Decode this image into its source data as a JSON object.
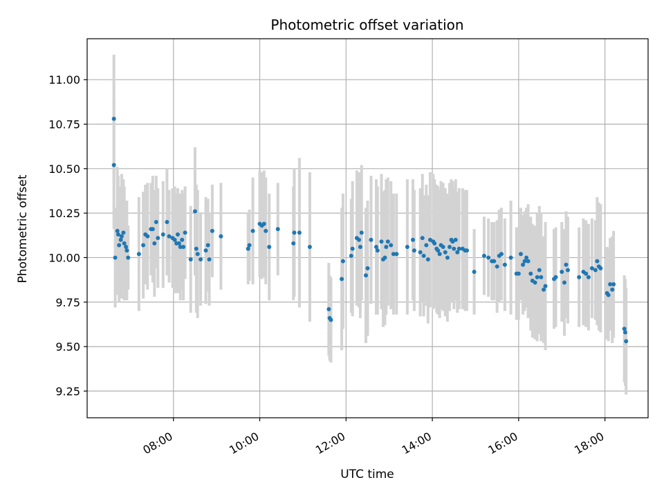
{
  "chart_data": {
    "type": "scatter",
    "title": "Photometric offset variation",
    "xlabel": "UTC time",
    "ylabel": "Photometric offset",
    "xlim_hours": [
      6.0,
      19.0
    ],
    "ylim": [
      9.1,
      11.23
    ],
    "x_ticks": [
      {
        "hour": 8,
        "label": "08:00"
      },
      {
        "hour": 10,
        "label": "10:00"
      },
      {
        "hour": 12,
        "label": "12:00"
      },
      {
        "hour": 14,
        "label": "14:00"
      },
      {
        "hour": 16,
        "label": "16:00"
      },
      {
        "hour": 18,
        "label": "18:00"
      }
    ],
    "y_ticks": [
      {
        "value": 9.25,
        "label": "9.25"
      },
      {
        "value": 9.5,
        "label": "9.50"
      },
      {
        "value": 9.75,
        "label": "9.75"
      },
      {
        "value": 10.0,
        "label": "10.00"
      },
      {
        "value": 10.25,
        "label": "10.25"
      },
      {
        "value": 10.5,
        "label": "10.50"
      },
      {
        "value": 10.75,
        "label": "10.75"
      },
      {
        "value": 11.0,
        "label": "11.00"
      }
    ],
    "grid": true,
    "point_color": "#1f77b4",
    "errorbar_color": "#d3d3d3",
    "series": [
      {
        "points": [
          [
            6.62,
            10.78,
            0.36
          ],
          [
            6.62,
            10.52,
            0.36
          ],
          [
            6.65,
            10.0,
            0.28
          ],
          [
            6.7,
            10.15,
            0.36
          ],
          [
            6.72,
            10.13,
            0.33
          ],
          [
            6.74,
            10.07,
            0.32
          ],
          [
            6.78,
            10.1,
            0.3
          ],
          [
            6.8,
            10.12,
            0.35
          ],
          [
            6.84,
            10.14,
            0.3
          ],
          [
            6.86,
            10.08,
            0.32
          ],
          [
            6.9,
            10.06,
            0.26
          ],
          [
            6.92,
            10.04,
            0.28
          ],
          [
            6.95,
            10.0,
            0.18
          ],
          [
            7.2,
            10.02,
            0.32
          ],
          [
            7.3,
            10.07,
            0.3
          ],
          [
            7.35,
            10.13,
            0.28
          ],
          [
            7.4,
            10.12,
            0.3
          ],
          [
            7.48,
            10.16,
            0.26
          ],
          [
            7.52,
            10.16,
            0.3
          ],
          [
            7.56,
            10.08,
            0.3
          ],
          [
            7.6,
            10.2,
            0.26
          ],
          [
            7.64,
            10.11,
            0.28
          ],
          [
            7.76,
            10.13,
            0.3
          ],
          [
            7.85,
            10.2,
            0.3
          ],
          [
            7.9,
            10.12,
            0.26
          ],
          [
            7.98,
            10.11,
            0.28
          ],
          [
            8.03,
            10.1,
            0.3
          ],
          [
            8.07,
            10.08,
            0.28
          ],
          [
            8.1,
            10.13,
            0.26
          ],
          [
            8.13,
            10.08,
            0.28
          ],
          [
            8.16,
            10.06,
            0.3
          ],
          [
            8.2,
            10.1,
            0.28
          ],
          [
            8.23,
            10.06,
            0.3
          ],
          [
            8.27,
            10.14,
            0.26
          ],
          [
            8.4,
            9.99,
            0.3
          ],
          [
            8.5,
            10.26,
            0.36
          ],
          [
            8.53,
            10.05,
            0.36
          ],
          [
            8.56,
            10.02,
            0.36
          ],
          [
            8.63,
            9.99,
            0.26
          ],
          [
            8.75,
            10.04,
            0.3
          ],
          [
            8.8,
            10.07,
            0.26
          ],
          [
            8.83,
            9.99,
            0.26
          ],
          [
            8.9,
            10.15,
            0.26
          ],
          [
            9.1,
            10.12,
            0.3
          ],
          [
            9.73,
            10.05,
            0.2
          ],
          [
            9.76,
            10.07,
            0.2
          ],
          [
            9.84,
            10.15,
            0.3
          ],
          [
            10.0,
            10.19,
            0.3
          ],
          [
            10.05,
            10.18,
            0.3
          ],
          [
            10.1,
            10.19,
            0.3
          ],
          [
            10.14,
            10.15,
            0.3
          ],
          [
            10.22,
            10.06,
            0.3
          ],
          [
            10.42,
            10.16,
            0.26
          ],
          [
            10.78,
            10.08,
            0.32
          ],
          [
            10.8,
            10.14,
            0.36
          ],
          [
            10.92,
            10.14,
            0.42
          ],
          [
            11.16,
            10.06,
            0.42
          ],
          [
            11.6,
            9.71,
            0.26
          ],
          [
            11.62,
            9.66,
            0.24
          ],
          [
            11.65,
            9.65,
            0.24
          ],
          [
            11.9,
            9.88,
            0.4
          ],
          [
            11.93,
            9.98,
            0.38
          ],
          [
            12.12,
            10.01,
            0.32
          ],
          [
            12.15,
            10.05,
            0.38
          ],
          [
            12.25,
            10.11,
            0.38
          ],
          [
            12.3,
            10.1,
            0.38
          ],
          [
            12.33,
            10.06,
            0.4
          ],
          [
            12.36,
            10.14,
            0.38
          ],
          [
            12.46,
            9.9,
            0.38
          ],
          [
            12.5,
            9.94,
            0.38
          ],
          [
            12.58,
            10.1,
            0.36
          ],
          [
            12.7,
            10.06,
            0.38
          ],
          [
            12.73,
            10.04,
            0.36
          ],
          [
            12.82,
            10.09,
            0.38
          ],
          [
            12.86,
            9.99,
            0.38
          ],
          [
            12.9,
            10.0,
            0.38
          ],
          [
            12.93,
            10.06,
            0.38
          ],
          [
            12.97,
            10.09,
            0.36
          ],
          [
            13.04,
            10.07,
            0.36
          ],
          [
            13.1,
            10.02,
            0.34
          ],
          [
            13.17,
            10.02,
            0.34
          ],
          [
            13.42,
            10.06,
            0.38
          ],
          [
            13.55,
            10.1,
            0.34
          ],
          [
            13.58,
            10.04,
            0.34
          ],
          [
            13.72,
            10.03,
            0.36
          ],
          [
            13.77,
            10.11,
            0.36
          ],
          [
            13.8,
            10.01,
            0.34
          ],
          [
            13.86,
            10.07,
            0.34
          ],
          [
            13.9,
            9.99,
            0.36
          ],
          [
            13.95,
            10.1,
            0.38
          ],
          [
            14.02,
            10.09,
            0.38
          ],
          [
            14.05,
            10.08,
            0.36
          ],
          [
            14.1,
            10.05,
            0.36
          ],
          [
            14.13,
            10.04,
            0.36
          ],
          [
            14.17,
            10.02,
            0.36
          ],
          [
            14.2,
            10.07,
            0.36
          ],
          [
            14.25,
            10.06,
            0.36
          ],
          [
            14.3,
            10.03,
            0.36
          ],
          [
            14.35,
            10.0,
            0.36
          ],
          [
            14.4,
            10.06,
            0.36
          ],
          [
            14.44,
            10.1,
            0.34
          ],
          [
            14.47,
            10.09,
            0.34
          ],
          [
            14.5,
            10.05,
            0.34
          ],
          [
            14.54,
            10.1,
            0.34
          ],
          [
            14.58,
            10.03,
            0.34
          ],
          [
            14.62,
            10.05,
            0.34
          ],
          [
            14.7,
            10.05,
            0.34
          ],
          [
            14.76,
            10.04,
            0.34
          ],
          [
            14.8,
            10.04,
            0.34
          ],
          [
            14.97,
            9.92,
            0.24
          ],
          [
            15.2,
            10.01,
            0.22
          ],
          [
            15.3,
            10.0,
            0.22
          ],
          [
            15.38,
            9.98,
            0.22
          ],
          [
            15.43,
            9.98,
            0.22
          ],
          [
            15.5,
            9.95,
            0.26
          ],
          [
            15.55,
            10.01,
            0.26
          ],
          [
            15.6,
            10.02,
            0.26
          ],
          [
            15.68,
            9.96,
            0.26
          ],
          [
            15.82,
            10.0,
            0.32
          ],
          [
            15.95,
            9.91,
            0.26
          ],
          [
            16.0,
            9.91,
            0.26
          ],
          [
            16.05,
            10.02,
            0.26
          ],
          [
            16.1,
            9.96,
            0.28
          ],
          [
            16.14,
            9.98,
            0.28
          ],
          [
            16.18,
            10.0,
            0.28
          ],
          [
            16.22,
            9.98,
            0.32
          ],
          [
            16.28,
            9.91,
            0.32
          ],
          [
            16.32,
            9.87,
            0.32
          ],
          [
            16.38,
            9.86,
            0.32
          ],
          [
            16.43,
            9.89,
            0.36
          ],
          [
            16.48,
            9.93,
            0.36
          ],
          [
            16.52,
            9.89,
            0.36
          ],
          [
            16.58,
            9.82,
            0.3
          ],
          [
            16.62,
            9.84,
            0.36
          ],
          [
            16.82,
            9.88,
            0.28
          ],
          [
            16.86,
            9.89,
            0.28
          ],
          [
            17.0,
            9.92,
            0.28
          ],
          [
            17.06,
            9.86,
            0.3
          ],
          [
            17.1,
            9.96,
            0.3
          ],
          [
            17.14,
            9.93,
            0.3
          ],
          [
            17.4,
            9.89,
            0.28
          ],
          [
            17.5,
            9.92,
            0.3
          ],
          [
            17.56,
            9.91,
            0.3
          ],
          [
            17.62,
            9.89,
            0.3
          ],
          [
            17.7,
            9.94,
            0.28
          ],
          [
            17.78,
            9.93,
            0.28
          ],
          [
            17.82,
            9.98,
            0.36
          ],
          [
            17.86,
            9.95,
            0.36
          ],
          [
            17.9,
            9.94,
            0.36
          ],
          [
            18.05,
            9.8,
            0.26
          ],
          [
            18.08,
            9.79,
            0.26
          ],
          [
            18.12,
            9.85,
            0.26
          ],
          [
            18.17,
            9.82,
            0.3
          ],
          [
            18.2,
            9.85,
            0.3
          ],
          [
            18.45,
            9.6,
            0.3
          ],
          [
            18.47,
            9.58,
            0.3
          ],
          [
            18.49,
            9.53,
            0.3
          ]
        ]
      }
    ]
  }
}
